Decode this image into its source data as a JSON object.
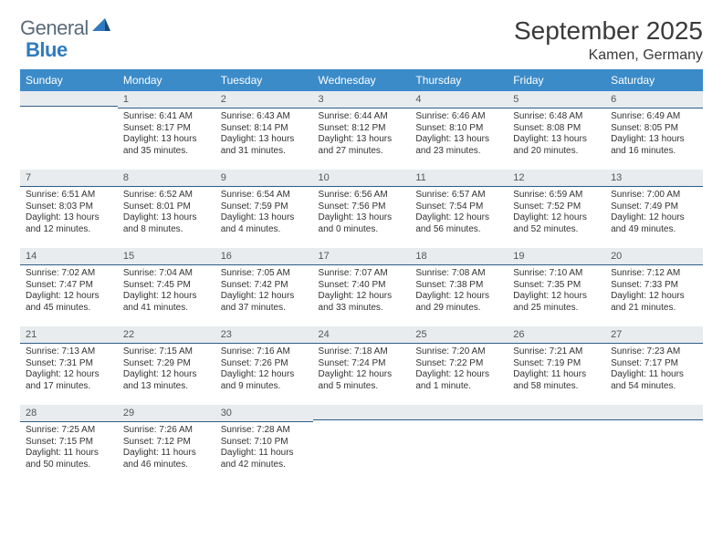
{
  "logo": {
    "general": "General",
    "blue": "Blue"
  },
  "title": "September 2025",
  "location": "Kamen, Germany",
  "colors": {
    "header_bg": "#3b8bc9",
    "header_text": "#ffffff",
    "daynum_bg": "#e8ecef",
    "daynum_border": "#2f5d87",
    "logo_general": "#5a6b7a",
    "logo_blue": "#2f7bbf",
    "text": "#333333",
    "background": "#ffffff"
  },
  "day_headers": [
    "Sunday",
    "Monday",
    "Tuesday",
    "Wednesday",
    "Thursday",
    "Friday",
    "Saturday"
  ],
  "weeks": [
    [
      {
        "n": "",
        "sr": "",
        "ss": "",
        "dl": ""
      },
      {
        "n": "1",
        "sr": "Sunrise: 6:41 AM",
        "ss": "Sunset: 8:17 PM",
        "dl": "Daylight: 13 hours and 35 minutes."
      },
      {
        "n": "2",
        "sr": "Sunrise: 6:43 AM",
        "ss": "Sunset: 8:14 PM",
        "dl": "Daylight: 13 hours and 31 minutes."
      },
      {
        "n": "3",
        "sr": "Sunrise: 6:44 AM",
        "ss": "Sunset: 8:12 PM",
        "dl": "Daylight: 13 hours and 27 minutes."
      },
      {
        "n": "4",
        "sr": "Sunrise: 6:46 AM",
        "ss": "Sunset: 8:10 PM",
        "dl": "Daylight: 13 hours and 23 minutes."
      },
      {
        "n": "5",
        "sr": "Sunrise: 6:48 AM",
        "ss": "Sunset: 8:08 PM",
        "dl": "Daylight: 13 hours and 20 minutes."
      },
      {
        "n": "6",
        "sr": "Sunrise: 6:49 AM",
        "ss": "Sunset: 8:05 PM",
        "dl": "Daylight: 13 hours and 16 minutes."
      }
    ],
    [
      {
        "n": "7",
        "sr": "Sunrise: 6:51 AM",
        "ss": "Sunset: 8:03 PM",
        "dl": "Daylight: 13 hours and 12 minutes."
      },
      {
        "n": "8",
        "sr": "Sunrise: 6:52 AM",
        "ss": "Sunset: 8:01 PM",
        "dl": "Daylight: 13 hours and 8 minutes."
      },
      {
        "n": "9",
        "sr": "Sunrise: 6:54 AM",
        "ss": "Sunset: 7:59 PM",
        "dl": "Daylight: 13 hours and 4 minutes."
      },
      {
        "n": "10",
        "sr": "Sunrise: 6:56 AM",
        "ss": "Sunset: 7:56 PM",
        "dl": "Daylight: 13 hours and 0 minutes."
      },
      {
        "n": "11",
        "sr": "Sunrise: 6:57 AM",
        "ss": "Sunset: 7:54 PM",
        "dl": "Daylight: 12 hours and 56 minutes."
      },
      {
        "n": "12",
        "sr": "Sunrise: 6:59 AM",
        "ss": "Sunset: 7:52 PM",
        "dl": "Daylight: 12 hours and 52 minutes."
      },
      {
        "n": "13",
        "sr": "Sunrise: 7:00 AM",
        "ss": "Sunset: 7:49 PM",
        "dl": "Daylight: 12 hours and 49 minutes."
      }
    ],
    [
      {
        "n": "14",
        "sr": "Sunrise: 7:02 AM",
        "ss": "Sunset: 7:47 PM",
        "dl": "Daylight: 12 hours and 45 minutes."
      },
      {
        "n": "15",
        "sr": "Sunrise: 7:04 AM",
        "ss": "Sunset: 7:45 PM",
        "dl": "Daylight: 12 hours and 41 minutes."
      },
      {
        "n": "16",
        "sr": "Sunrise: 7:05 AM",
        "ss": "Sunset: 7:42 PM",
        "dl": "Daylight: 12 hours and 37 minutes."
      },
      {
        "n": "17",
        "sr": "Sunrise: 7:07 AM",
        "ss": "Sunset: 7:40 PM",
        "dl": "Daylight: 12 hours and 33 minutes."
      },
      {
        "n": "18",
        "sr": "Sunrise: 7:08 AM",
        "ss": "Sunset: 7:38 PM",
        "dl": "Daylight: 12 hours and 29 minutes."
      },
      {
        "n": "19",
        "sr": "Sunrise: 7:10 AM",
        "ss": "Sunset: 7:35 PM",
        "dl": "Daylight: 12 hours and 25 minutes."
      },
      {
        "n": "20",
        "sr": "Sunrise: 7:12 AM",
        "ss": "Sunset: 7:33 PM",
        "dl": "Daylight: 12 hours and 21 minutes."
      }
    ],
    [
      {
        "n": "21",
        "sr": "Sunrise: 7:13 AM",
        "ss": "Sunset: 7:31 PM",
        "dl": "Daylight: 12 hours and 17 minutes."
      },
      {
        "n": "22",
        "sr": "Sunrise: 7:15 AM",
        "ss": "Sunset: 7:29 PM",
        "dl": "Daylight: 12 hours and 13 minutes."
      },
      {
        "n": "23",
        "sr": "Sunrise: 7:16 AM",
        "ss": "Sunset: 7:26 PM",
        "dl": "Daylight: 12 hours and 9 minutes."
      },
      {
        "n": "24",
        "sr": "Sunrise: 7:18 AM",
        "ss": "Sunset: 7:24 PM",
        "dl": "Daylight: 12 hours and 5 minutes."
      },
      {
        "n": "25",
        "sr": "Sunrise: 7:20 AM",
        "ss": "Sunset: 7:22 PM",
        "dl": "Daylight: 12 hours and 1 minute."
      },
      {
        "n": "26",
        "sr": "Sunrise: 7:21 AM",
        "ss": "Sunset: 7:19 PM",
        "dl": "Daylight: 11 hours and 58 minutes."
      },
      {
        "n": "27",
        "sr": "Sunrise: 7:23 AM",
        "ss": "Sunset: 7:17 PM",
        "dl": "Daylight: 11 hours and 54 minutes."
      }
    ],
    [
      {
        "n": "28",
        "sr": "Sunrise: 7:25 AM",
        "ss": "Sunset: 7:15 PM",
        "dl": "Daylight: 11 hours and 50 minutes."
      },
      {
        "n": "29",
        "sr": "Sunrise: 7:26 AM",
        "ss": "Sunset: 7:12 PM",
        "dl": "Daylight: 11 hours and 46 minutes."
      },
      {
        "n": "30",
        "sr": "Sunrise: 7:28 AM",
        "ss": "Sunset: 7:10 PM",
        "dl": "Daylight: 11 hours and 42 minutes."
      },
      {
        "n": "",
        "sr": "",
        "ss": "",
        "dl": ""
      },
      {
        "n": "",
        "sr": "",
        "ss": "",
        "dl": ""
      },
      {
        "n": "",
        "sr": "",
        "ss": "",
        "dl": ""
      },
      {
        "n": "",
        "sr": "",
        "ss": "",
        "dl": ""
      }
    ]
  ]
}
